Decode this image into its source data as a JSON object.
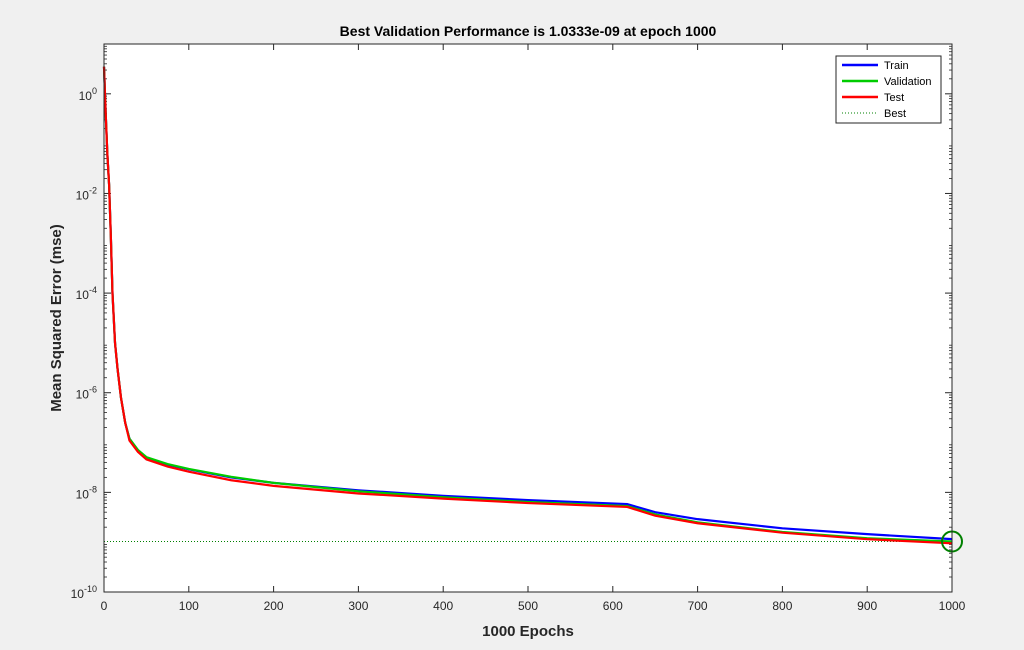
{
  "chart_data": {
    "type": "line",
    "title": "Best Validation Performance is 1.0333e-09 at epoch 1000",
    "xlabel": "1000 Epochs",
    "ylabel": "Mean Squared Error  (mse)",
    "xlim": [
      0,
      1000
    ],
    "ylim": [
      1e-10,
      10
    ],
    "yscale": "log",
    "xticks": [
      0,
      100,
      200,
      300,
      400,
      500,
      600,
      700,
      800,
      900,
      1000
    ],
    "yticks": [
      {
        "base": "10",
        "exp": "0",
        "value": 1
      },
      {
        "base": "10",
        "exp": "-2",
        "value": 0.01
      },
      {
        "base": "10",
        "exp": "-4",
        "value": 0.0001
      },
      {
        "base": "10",
        "exp": "-6",
        "value": 1e-06
      },
      {
        "base": "10",
        "exp": "-8",
        "value": 1e-08
      },
      {
        "base": "10",
        "exp": "-10",
        "value": 1e-10
      }
    ],
    "grid": false,
    "legend_position": "top-right",
    "series": [
      {
        "name": "Train",
        "color": "#0000ff",
        "x": [
          0,
          2,
          4,
          6,
          8,
          10,
          13,
          16,
          20,
          25,
          30,
          40,
          50,
          75,
          100,
          150,
          200,
          300,
          400,
          500,
          617,
          650,
          700,
          800,
          900,
          1000
        ],
        "y": [
          3.5,
          0.4,
          0.06,
          0.015,
          0.0015,
          0.0001,
          1e-05,
          3e-06,
          8e-07,
          2.5e-07,
          1.2e-07,
          7e-08,
          5e-08,
          3.6e-08,
          2.9e-08,
          2e-08,
          1.55e-08,
          1.1e-08,
          8.5e-09,
          7e-09,
          5.8e-09,
          4e-09,
          2.9e-09,
          1.9e-09,
          1.45e-09,
          1.15e-09
        ]
      },
      {
        "name": "Validation",
        "color": "#00cc00",
        "x": [
          0,
          2,
          4,
          6,
          8,
          10,
          13,
          16,
          20,
          25,
          30,
          40,
          50,
          75,
          100,
          150,
          200,
          300,
          400,
          500,
          617,
          650,
          700,
          800,
          900,
          1000
        ],
        "y": [
          3.5,
          0.4,
          0.06,
          0.015,
          0.0015,
          0.0001,
          1e-05,
          3e-06,
          8e-07,
          2.5e-07,
          1.2e-07,
          7.1e-08,
          5.1e-08,
          3.7e-08,
          2.95e-08,
          2.05e-08,
          1.55e-08,
          1.05e-08,
          8e-09,
          6.4e-09,
          5.3e-09,
          3.6e-09,
          2.5e-09,
          1.6e-09,
          1.2e-09,
          1.0333e-09
        ]
      },
      {
        "name": "Test",
        "color": "#ff0000",
        "x": [
          0,
          2,
          4,
          6,
          8,
          10,
          13,
          16,
          20,
          25,
          30,
          40,
          50,
          75,
          100,
          150,
          200,
          300,
          400,
          500,
          617,
          650,
          700,
          800,
          900,
          1000
        ],
        "y": [
          3.5,
          0.4,
          0.06,
          0.015,
          0.0015,
          0.0001,
          1e-05,
          3e-06,
          8e-07,
          2.5e-07,
          1.1e-07,
          6.5e-08,
          4.6e-08,
          3.3e-08,
          2.6e-08,
          1.75e-08,
          1.35e-08,
          9.5e-09,
          7.5e-09,
          6.1e-09,
          5.1e-09,
          3.4e-09,
          2.4e-09,
          1.55e-09,
          1.15e-09,
          9.5e-10
        ]
      }
    ],
    "best": {
      "name": "Best",
      "epoch": 1000,
      "value": 1.0333e-09,
      "color": "#008000"
    }
  }
}
